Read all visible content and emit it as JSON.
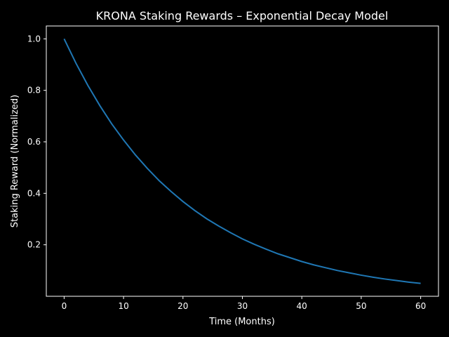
{
  "chart_data": {
    "type": "line",
    "title": "KRONA Staking Rewards – Exponential Decay Model",
    "xlabel": "Time (Months)",
    "ylabel": "Staking Reward (Normalized)",
    "xlim": [
      -3,
      63
    ],
    "ylim": [
      0.0,
      1.05
    ],
    "xticks": [
      0,
      10,
      20,
      30,
      40,
      50,
      60
    ],
    "yticks": [
      0.2,
      0.4,
      0.6,
      0.8,
      1.0
    ],
    "grid": false,
    "series": [
      {
        "color": "#1f77b4",
        "x": [
          0,
          2,
          4,
          6,
          8,
          10,
          12,
          14,
          16,
          18,
          20,
          22,
          24,
          26,
          28,
          30,
          32,
          34,
          36,
          38,
          40,
          42,
          44,
          46,
          48,
          50,
          52,
          54,
          56,
          58,
          60
        ],
        "y": [
          1.0,
          0.905,
          0.819,
          0.741,
          0.67,
          0.607,
          0.549,
          0.497,
          0.449,
          0.407,
          0.368,
          0.333,
          0.301,
          0.273,
          0.247,
          0.223,
          0.202,
          0.183,
          0.165,
          0.15,
          0.135,
          0.122,
          0.111,
          0.1,
          0.091,
          0.082,
          0.074,
          0.067,
          0.061,
          0.055,
          0.05
        ]
      }
    ]
  },
  "colors": {
    "background": "#000000",
    "axes": "#ffffff",
    "text": "#ffffff"
  }
}
